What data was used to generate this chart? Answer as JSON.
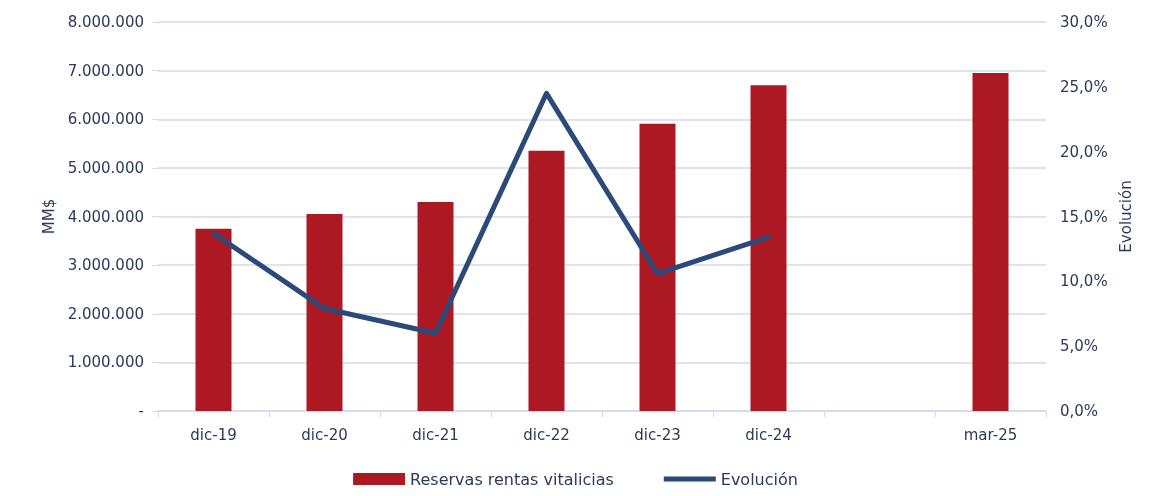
{
  "chart_data": {
    "type": "bar",
    "ylabel": "MM$",
    "y2label": "Evolución",
    "categories": [
      "dic-19",
      "dic-20",
      "dic-21",
      "dic-22",
      "dic-23",
      "dic-24",
      null,
      "mar-25"
    ],
    "series": [
      {
        "name": "Reservas rentas vitalicias",
        "color": "#ad1923",
        "values": [
          3750000,
          4050000,
          4300000,
          5350000,
          5910000,
          6700000,
          null,
          6950000
        ]
      },
      {
        "name": "Evolución",
        "type": "line",
        "axis": "y2",
        "color": "#2b4a7a",
        "values": [
          13.7,
          7.9,
          6.0,
          24.5,
          10.6,
          13.4,
          null,
          null
        ]
      }
    ],
    "ylim": [
      0,
      8000000
    ],
    "yticks": [
      {
        "value": 0,
        "label": "-"
      },
      {
        "value": 1000000,
        "label": "1.000.000"
      },
      {
        "value": 2000000,
        "label": "2.000.000"
      },
      {
        "value": 3000000,
        "label": "3.000.000"
      },
      {
        "value": 4000000,
        "label": "4.000.000"
      },
      {
        "value": 5000000,
        "label": "5.000.000"
      },
      {
        "value": 6000000,
        "label": "6.000.000"
      },
      {
        "value": 7000000,
        "label": "7.000.000"
      },
      {
        "value": 8000000,
        "label": "8.000.000"
      }
    ],
    "y2lim": [
      0,
      30
    ],
    "y2ticks": [
      {
        "value": 0,
        "label": "0,0%"
      },
      {
        "value": 5,
        "label": "5,0%"
      },
      {
        "value": 10,
        "label": "10,0%"
      },
      {
        "value": 15,
        "label": "15,0%"
      },
      {
        "value": 20,
        "label": "20,0%"
      },
      {
        "value": 25,
        "label": "25,0%"
      },
      {
        "value": 30,
        "label": "30,0%"
      }
    ],
    "grid": "y",
    "legend": "bottom",
    "marker": "none",
    "line_style": "solid"
  }
}
